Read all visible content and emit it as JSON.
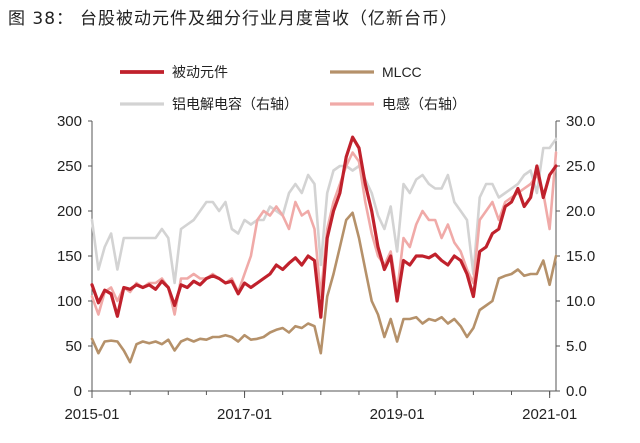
{
  "figure": {
    "label": "图 38：",
    "title": "台股被动元件及细分行业月度营收（亿新台币）"
  },
  "colors": {
    "passive": "#c0212c",
    "mlcc": "#b5916a",
    "aluminum": "#d3d3d3",
    "inductor": "#f0aaa8",
    "axis": "#555555"
  },
  "chart_data": {
    "type": "line",
    "x": [
      "2015-01",
      "2015-02",
      "2015-03",
      "2015-04",
      "2015-05",
      "2015-06",
      "2015-07",
      "2015-08",
      "2015-09",
      "2015-10",
      "2015-11",
      "2015-12",
      "2016-01",
      "2016-02",
      "2016-03",
      "2016-04",
      "2016-05",
      "2016-06",
      "2016-07",
      "2016-08",
      "2016-09",
      "2016-10",
      "2016-11",
      "2016-12",
      "2017-01",
      "2017-02",
      "2017-03",
      "2017-04",
      "2017-05",
      "2017-06",
      "2017-07",
      "2017-08",
      "2017-09",
      "2017-10",
      "2017-11",
      "2017-12",
      "2018-01",
      "2018-02",
      "2018-03",
      "2018-04",
      "2018-05",
      "2018-06",
      "2018-07",
      "2018-08",
      "2018-09",
      "2018-10",
      "2018-11",
      "2018-12",
      "2019-01",
      "2019-02",
      "2019-03",
      "2019-04",
      "2019-05",
      "2019-06",
      "2019-07",
      "2019-08",
      "2019-09",
      "2019-10",
      "2019-11",
      "2019-12",
      "2020-01",
      "2020-02",
      "2020-03",
      "2020-04",
      "2020-05",
      "2020-06",
      "2020-07",
      "2020-08",
      "2020-09",
      "2020-10",
      "2020-11",
      "2020-12",
      "2021-01",
      "2021-02"
    ],
    "x_ticks": [
      "2015-01",
      "2017-01",
      "2019-01",
      "2021-01"
    ],
    "y_left": {
      "min": 0,
      "max": 300,
      "ticks": [
        "0",
        "50",
        "100",
        "150",
        "200",
        "250",
        "300"
      ]
    },
    "y_right": {
      "min": 0,
      "max": 30,
      "ticks": [
        "0.0",
        "5.0",
        "10.0",
        "15.0",
        "20.0",
        "25.0",
        "30.0"
      ]
    },
    "legend_position": "top",
    "series": [
      {
        "name": "被动元件",
        "axis": "left",
        "values": [
          118,
          98,
          112,
          108,
          83,
          115,
          113,
          118,
          115,
          118,
          113,
          122,
          115,
          95,
          118,
          115,
          122,
          118,
          125,
          128,
          125,
          120,
          122,
          108,
          120,
          115,
          120,
          125,
          130,
          140,
          135,
          142,
          148,
          140,
          150,
          145,
          82,
          170,
          200,
          220,
          260,
          282,
          270,
          230,
          200,
          160,
          135,
          150,
          100,
          145,
          140,
          150,
          150,
          148,
          152,
          145,
          140,
          150,
          145,
          130,
          105,
          155,
          160,
          175,
          180,
          205,
          210,
          225,
          205,
          215,
          250,
          215,
          240,
          250
        ]
      },
      {
        "name": "MLCC",
        "axis": "left",
        "values": [
          58,
          42,
          55,
          56,
          55,
          45,
          32,
          52,
          55,
          53,
          55,
          52,
          57,
          45,
          55,
          58,
          55,
          58,
          57,
          60,
          60,
          62,
          60,
          55,
          62,
          57,
          58,
          60,
          65,
          68,
          70,
          65,
          72,
          70,
          75,
          72,
          42,
          105,
          130,
          160,
          190,
          198,
          170,
          135,
          100,
          85,
          60,
          80,
          55,
          80,
          80,
          82,
          75,
          80,
          78,
          82,
          75,
          80,
          72,
          60,
          70,
          90,
          95,
          100,
          125,
          128,
          130,
          135,
          128,
          130,
          130,
          145,
          118,
          150
        ]
      },
      {
        "name": "铝电解电容（右轴）",
        "axis": "right",
        "values": [
          19,
          13.5,
          16,
          17.5,
          13.5,
          17,
          17,
          17,
          17,
          17,
          17,
          18,
          17,
          12,
          18,
          18.5,
          19,
          20,
          21,
          21,
          20,
          21,
          18,
          17.5,
          19,
          18.5,
          19,
          19,
          20.5,
          20,
          19.5,
          22,
          23,
          22,
          24,
          23,
          14,
          22,
          24.5,
          25,
          25,
          24.5,
          25,
          23.5,
          22,
          19.5,
          18,
          20.5,
          15.5,
          23,
          22,
          23.5,
          24,
          23,
          22.5,
          22.5,
          24,
          21,
          20,
          19,
          13,
          21.5,
          23,
          23,
          21.5,
          22,
          22.5,
          23,
          24,
          24.5,
          22,
          27,
          27,
          28
        ]
      },
      {
        "name": "电感（右轴）",
        "axis": "right",
        "values": [
          10.5,
          8.5,
          11,
          11.5,
          10,
          11.5,
          11,
          12,
          11.5,
          12,
          12,
          12.5,
          11.5,
          8.5,
          12.5,
          12.5,
          13,
          12.5,
          12.5,
          13,
          12.5,
          12,
          12.5,
          11,
          13,
          15,
          19,
          20,
          19.5,
          20.5,
          19.5,
          18,
          21,
          19.5,
          20,
          18,
          10.5,
          18,
          21,
          23,
          25,
          26.5,
          25.5,
          21,
          17.5,
          15,
          14,
          15.5,
          11,
          17,
          16,
          18.5,
          20,
          19,
          19,
          17,
          18.5,
          16.5,
          15.5,
          13.5,
          12,
          19,
          20,
          21,
          19,
          21,
          21.5,
          22,
          22.5,
          23,
          24,
          22,
          18,
          26.5
        ]
      }
    ]
  }
}
